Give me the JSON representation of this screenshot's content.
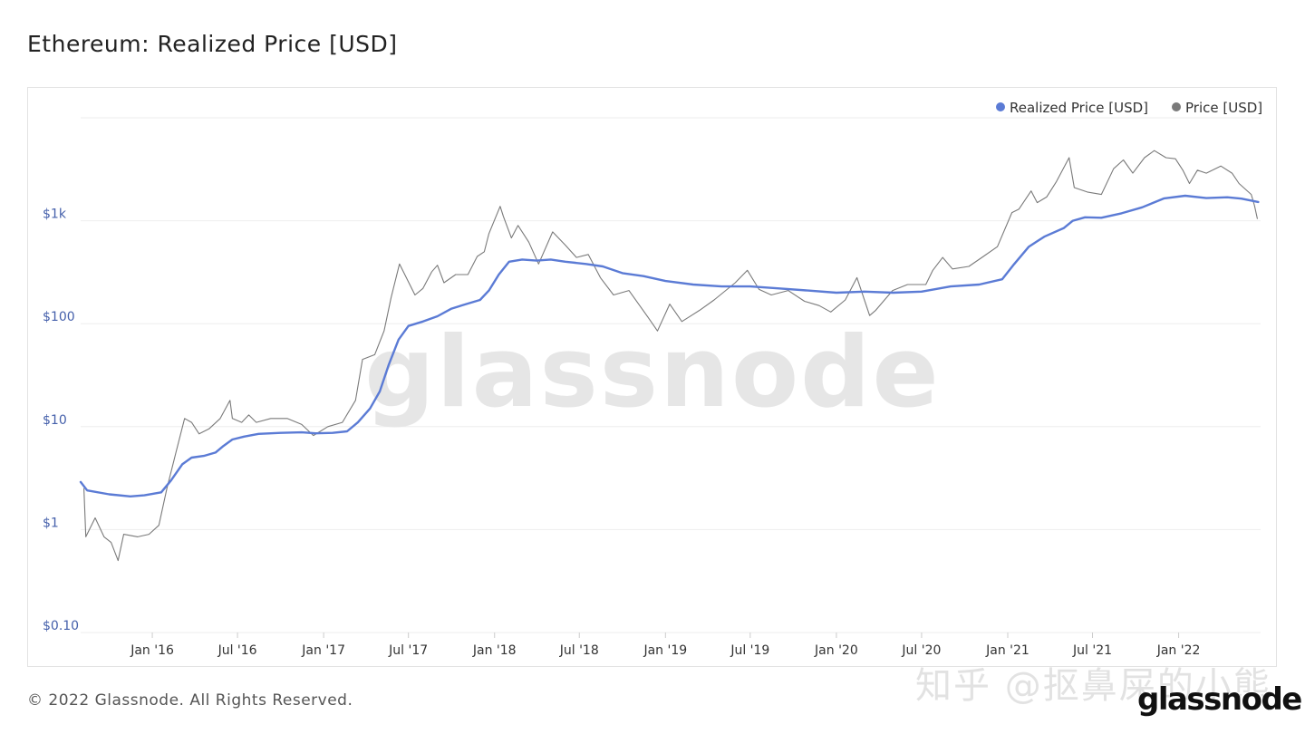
{
  "page": {
    "title": "Ethereum: Realized Price [USD]",
    "footer": "© 2022 Glassnode. All Rights Reserved.",
    "watermark": "glassnode",
    "zhihu_watermark": "知乎 @抠鼻屎的小熊",
    "brand_logo": "glassnode"
  },
  "colors": {
    "realized": "#5b7bd5",
    "price": "#7a7a7a",
    "grid": "#eeeeee",
    "tick_label": "#4560ab",
    "x_label": "#333333",
    "watermark": "#e6e6e6"
  },
  "chart_data": {
    "type": "line",
    "title": "Ethereum: Realized Price [USD]",
    "y_scale": "log",
    "ylim": [
      0.1,
      10000
    ],
    "xlim": [
      "2015-08-01",
      "2022-06-25"
    ],
    "yticks": [
      {
        "value": 0.1,
        "label": "$0.10"
      },
      {
        "value": 1,
        "label": "$1"
      },
      {
        "value": 10,
        "label": "$10"
      },
      {
        "value": 100,
        "label": "$100"
      },
      {
        "value": 1000,
        "label": "$1k"
      }
    ],
    "xticks": [
      {
        "date": "2016-01-01",
        "label": "Jan '16"
      },
      {
        "date": "2016-07-01",
        "label": "Jul '16"
      },
      {
        "date": "2017-01-01",
        "label": "Jan '17"
      },
      {
        "date": "2017-07-01",
        "label": "Jul '17"
      },
      {
        "date": "2018-01-01",
        "label": "Jan '18"
      },
      {
        "date": "2018-07-01",
        "label": "Jul '18"
      },
      {
        "date": "2019-01-01",
        "label": "Jan '19"
      },
      {
        "date": "2019-07-01",
        "label": "Jul '19"
      },
      {
        "date": "2020-01-01",
        "label": "Jan '20"
      },
      {
        "date": "2020-07-01",
        "label": "Jul '20"
      },
      {
        "date": "2021-01-01",
        "label": "Jan '21"
      },
      {
        "date": "2021-07-01",
        "label": "Jul '21"
      },
      {
        "date": "2022-01-01",
        "label": "Jan '22"
      }
    ],
    "grid": true,
    "legend_position": "top-right",
    "series": [
      {
        "name": "Realized Price [USD]",
        "color": "#5b7bd5",
        "points": [
          [
            "2015-08-01",
            2.9
          ],
          [
            "2015-08-15",
            2.4
          ],
          [
            "2015-10-01",
            2.2
          ],
          [
            "2015-11-15",
            2.1
          ],
          [
            "2015-12-15",
            2.15
          ],
          [
            "2016-01-20",
            2.3
          ],
          [
            "2016-02-10",
            3.0
          ],
          [
            "2016-03-05",
            4.3
          ],
          [
            "2016-03-25",
            5.0
          ],
          [
            "2016-04-20",
            5.2
          ],
          [
            "2016-05-15",
            5.6
          ],
          [
            "2016-06-01",
            6.5
          ],
          [
            "2016-06-20",
            7.5
          ],
          [
            "2016-07-15",
            8.0
          ],
          [
            "2016-08-15",
            8.5
          ],
          [
            "2016-10-01",
            8.7
          ],
          [
            "2016-11-15",
            8.8
          ],
          [
            "2016-12-15",
            8.6
          ],
          [
            "2017-01-20",
            8.7
          ],
          [
            "2017-02-20",
            9.0
          ],
          [
            "2017-03-15",
            11
          ],
          [
            "2017-04-10",
            15
          ],
          [
            "2017-05-01",
            22
          ],
          [
            "2017-05-20",
            40
          ],
          [
            "2017-06-10",
            70
          ],
          [
            "2017-07-01",
            95
          ],
          [
            "2017-08-01",
            105
          ],
          [
            "2017-09-01",
            118
          ],
          [
            "2017-10-01",
            140
          ],
          [
            "2017-11-01",
            155
          ],
          [
            "2017-12-01",
            170
          ],
          [
            "2017-12-20",
            210
          ],
          [
            "2018-01-10",
            300
          ],
          [
            "2018-02-01",
            400
          ],
          [
            "2018-03-01",
            420
          ],
          [
            "2018-04-01",
            410
          ],
          [
            "2018-05-01",
            420
          ],
          [
            "2018-06-01",
            400
          ],
          [
            "2018-07-15",
            380
          ],
          [
            "2018-08-20",
            360
          ],
          [
            "2018-10-01",
            310
          ],
          [
            "2018-11-15",
            290
          ],
          [
            "2019-01-01",
            260
          ],
          [
            "2019-03-01",
            240
          ],
          [
            "2019-05-01",
            230
          ],
          [
            "2019-07-01",
            230
          ],
          [
            "2019-09-01",
            220
          ],
          [
            "2019-11-01",
            210
          ],
          [
            "2020-01-01",
            200
          ],
          [
            "2020-03-01",
            205
          ],
          [
            "2020-05-01",
            200
          ],
          [
            "2020-07-01",
            205
          ],
          [
            "2020-09-01",
            230
          ],
          [
            "2020-11-01",
            240
          ],
          [
            "2020-12-20",
            270
          ],
          [
            "2021-01-15",
            380
          ],
          [
            "2021-02-15",
            560
          ],
          [
            "2021-03-20",
            700
          ],
          [
            "2021-05-01",
            850
          ],
          [
            "2021-05-20",
            1000
          ],
          [
            "2021-06-15",
            1080
          ],
          [
            "2021-07-20",
            1070
          ],
          [
            "2021-09-01",
            1180
          ],
          [
            "2021-10-15",
            1350
          ],
          [
            "2021-12-01",
            1650
          ],
          [
            "2022-01-15",
            1750
          ],
          [
            "2022-03-01",
            1660
          ],
          [
            "2022-04-15",
            1690
          ],
          [
            "2022-05-15",
            1640
          ],
          [
            "2022-06-20",
            1520
          ]
        ]
      },
      {
        "name": "Price [USD]",
        "color": "#7a7a7a",
        "points": [
          [
            "2015-08-08",
            2.5
          ],
          [
            "2015-08-12",
            0.85
          ],
          [
            "2015-09-01",
            1.3
          ],
          [
            "2015-09-20",
            0.85
          ],
          [
            "2015-10-05",
            0.75
          ],
          [
            "2015-10-20",
            0.5
          ],
          [
            "2015-11-01",
            0.9
          ],
          [
            "2015-12-01",
            0.85
          ],
          [
            "2015-12-25",
            0.9
          ],
          [
            "2016-01-15",
            1.1
          ],
          [
            "2016-02-01",
            2.5
          ],
          [
            "2016-02-20",
            5.5
          ],
          [
            "2016-03-10",
            12
          ],
          [
            "2016-03-25",
            11
          ],
          [
            "2016-04-10",
            8.5
          ],
          [
            "2016-05-01",
            9.5
          ],
          [
            "2016-05-25",
            12
          ],
          [
            "2016-06-15",
            18
          ],
          [
            "2016-06-20",
            12
          ],
          [
            "2016-07-10",
            11
          ],
          [
            "2016-07-25",
            13
          ],
          [
            "2016-08-10",
            11
          ],
          [
            "2016-09-10",
            12
          ],
          [
            "2016-10-15",
            12
          ],
          [
            "2016-11-15",
            10.5
          ],
          [
            "2016-12-10",
            8.2
          ],
          [
            "2017-01-10",
            10
          ],
          [
            "2017-02-10",
            11
          ],
          [
            "2017-03-10",
            18
          ],
          [
            "2017-03-25",
            45
          ],
          [
            "2017-04-20",
            50
          ],
          [
            "2017-05-10",
            85
          ],
          [
            "2017-05-25",
            180
          ],
          [
            "2017-06-12",
            380
          ],
          [
            "2017-07-15",
            190
          ],
          [
            "2017-08-01",
            220
          ],
          [
            "2017-08-20",
            320
          ],
          [
            "2017-09-01",
            370
          ],
          [
            "2017-09-15",
            250
          ],
          [
            "2017-10-10",
            300
          ],
          [
            "2017-11-05",
            300
          ],
          [
            "2017-11-25",
            450
          ],
          [
            "2017-12-10",
            500
          ],
          [
            "2017-12-20",
            750
          ],
          [
            "2018-01-13",
            1380
          ],
          [
            "2018-01-20",
            1100
          ],
          [
            "2018-02-06",
            680
          ],
          [
            "2018-02-20",
            900
          ],
          [
            "2018-03-15",
            620
          ],
          [
            "2018-04-05",
            380
          ],
          [
            "2018-05-05",
            780
          ],
          [
            "2018-06-01",
            580
          ],
          [
            "2018-06-25",
            440
          ],
          [
            "2018-07-20",
            470
          ],
          [
            "2018-08-15",
            280
          ],
          [
            "2018-09-12",
            190
          ],
          [
            "2018-10-15",
            210
          ],
          [
            "2018-11-25",
            115
          ],
          [
            "2018-12-15",
            85
          ],
          [
            "2019-01-10",
            155
          ],
          [
            "2019-02-05",
            105
          ],
          [
            "2019-03-15",
            135
          ],
          [
            "2019-04-15",
            170
          ],
          [
            "2019-05-30",
            250
          ],
          [
            "2019-06-25",
            330
          ],
          [
            "2019-07-20",
            215
          ],
          [
            "2019-08-15",
            190
          ],
          [
            "2019-09-20",
            210
          ],
          [
            "2019-10-25",
            165
          ],
          [
            "2019-11-25",
            150
          ],
          [
            "2019-12-20",
            130
          ],
          [
            "2020-01-20",
            170
          ],
          [
            "2020-02-14",
            280
          ],
          [
            "2020-03-12",
            120
          ],
          [
            "2020-03-25",
            135
          ],
          [
            "2020-04-30",
            210
          ],
          [
            "2020-06-01",
            240
          ],
          [
            "2020-07-10",
            240
          ],
          [
            "2020-07-25",
            330
          ],
          [
            "2020-08-15",
            440
          ],
          [
            "2020-09-05",
            340
          ],
          [
            "2020-10-10",
            360
          ],
          [
            "2020-11-10",
            450
          ],
          [
            "2020-12-10",
            560
          ],
          [
            "2021-01-10",
            1200
          ],
          [
            "2021-01-25",
            1300
          ],
          [
            "2021-02-20",
            1950
          ],
          [
            "2021-03-05",
            1500
          ],
          [
            "2021-03-25",
            1700
          ],
          [
            "2021-04-15",
            2400
          ],
          [
            "2021-05-12",
            4100
          ],
          [
            "2021-05-23",
            2100
          ],
          [
            "2021-06-20",
            1900
          ],
          [
            "2021-07-20",
            1800
          ],
          [
            "2021-08-15",
            3200
          ],
          [
            "2021-09-05",
            3900
          ],
          [
            "2021-09-25",
            2900
          ],
          [
            "2021-10-20",
            4100
          ],
          [
            "2021-11-10",
            4800
          ],
          [
            "2021-12-05",
            4100
          ],
          [
            "2021-12-25",
            4000
          ],
          [
            "2022-01-10",
            3100
          ],
          [
            "2022-01-24",
            2300
          ],
          [
            "2022-02-10",
            3100
          ],
          [
            "2022-03-01",
            2900
          ],
          [
            "2022-04-01",
            3400
          ],
          [
            "2022-04-25",
            2900
          ],
          [
            "2022-05-10",
            2300
          ],
          [
            "2022-06-05",
            1800
          ],
          [
            "2022-06-12",
            1400
          ],
          [
            "2022-06-18",
            1050
          ]
        ]
      }
    ]
  }
}
